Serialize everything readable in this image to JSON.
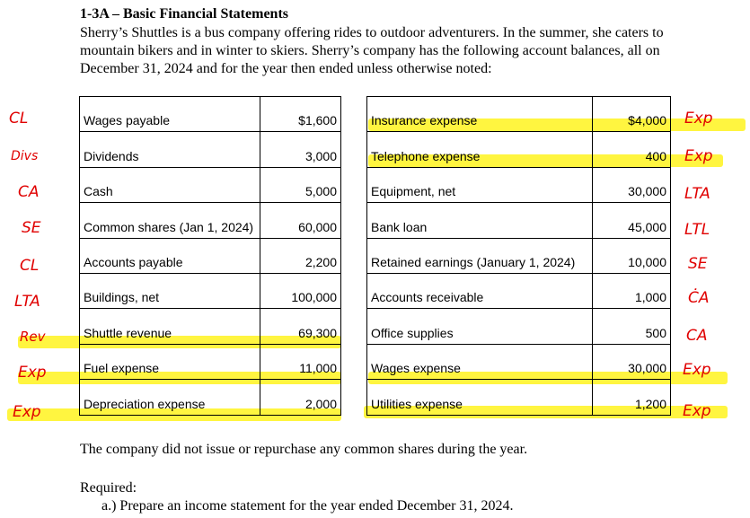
{
  "title": "1-3A – Basic Financial Statements",
  "intro": "Sherry’s Shuttles is a bus company offering rides to outdoor adventurers. In the summer, she caters to mountain bikers and in winter to skiers. Sherry’s company has the following account balances, all on December 31, 2024 and for the year then ended unless otherwise noted:",
  "left_accounts": [
    {
      "name": "Wages payable",
      "amount": "$1,600"
    },
    {
      "name": "Dividends",
      "amount": "3,000"
    },
    {
      "name": "Cash",
      "amount": "5,000"
    },
    {
      "name": "Common shares (Jan 1, 2024)",
      "amount": "60,000"
    },
    {
      "name": "Accounts payable",
      "amount": "2,200"
    },
    {
      "name": "Buildings, net",
      "amount": "100,000"
    },
    {
      "name": "Shuttle revenue",
      "amount": "69,300"
    },
    {
      "name": "Fuel expense",
      "amount": "11,000"
    },
    {
      "name": "Depreciation expense",
      "amount": "2,000"
    }
  ],
  "right_accounts": [
    {
      "name": "Insurance expense",
      "amount": "$4,000"
    },
    {
      "name": "Telephone expense",
      "amount": "400"
    },
    {
      "name": "Equipment, net",
      "amount": "30,000"
    },
    {
      "name": "Bank loan",
      "amount": "45,000"
    },
    {
      "name": "Retained earnings (January 1, 2024)",
      "amount": "10,000"
    },
    {
      "name": "Accounts receivable",
      "amount": "1,000"
    },
    {
      "name": "Office supplies",
      "amount": "500"
    },
    {
      "name": "Wages expense",
      "amount": "30,000"
    },
    {
      "name": "Utilities expense",
      "amount": "1,200"
    }
  ],
  "left_notes": [
    "CL",
    "Divs",
    "CA",
    "SE",
    "CL",
    "LTA",
    "Rev",
    "Exp",
    "Exp"
  ],
  "right_notes": [
    "Exp",
    "Exp",
    "LTA",
    "LTL",
    "SE",
    "ĊA",
    "CA",
    "Exp",
    "Exp"
  ],
  "footer": "The company did not issue or repurchase any common shares during the year.",
  "required_label": "Required:",
  "required_a": "a.) Prepare an income statement for the year ended December 31, 2024.",
  "colors": {
    "highlight": "#fff200",
    "annotation": "#e00000"
  }
}
